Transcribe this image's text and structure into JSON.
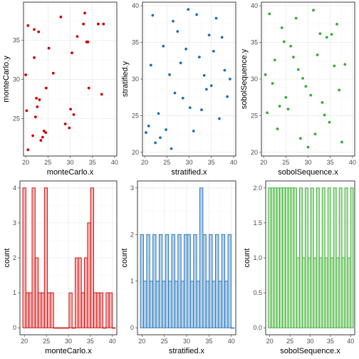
{
  "chart_data": [
    {
      "type": "scatter",
      "xlabel": "monteCarlo.x",
      "ylabel": "monteCarlo.y",
      "xlim": [
        19.5,
        40.5
      ],
      "ylim": [
        20.2,
        39.9
      ],
      "xticks": [
        20,
        25,
        30,
        35,
        40
      ],
      "yticks": [
        25,
        30,
        35
      ],
      "color": "#cc0000",
      "grid": "on",
      "points": [
        [
          20.5,
          21.0
        ],
        [
          20.2,
          26.0
        ],
        [
          20.0,
          30.6
        ],
        [
          20.5,
          36.9
        ],
        [
          21.6,
          22.8
        ],
        [
          21.9,
          32.8
        ],
        [
          21.9,
          36.4
        ],
        [
          22.2,
          25.2
        ],
        [
          22.4,
          27.6
        ],
        [
          22.6,
          26.5
        ],
        [
          22.9,
          36.1
        ],
        [
          23.1,
          27.4
        ],
        [
          23.4,
          22.2
        ],
        [
          23.8,
          22.6
        ],
        [
          24.1,
          23.4
        ],
        [
          24.5,
          23.2
        ],
        [
          24.6,
          28.9
        ],
        [
          25.2,
          34.0
        ],
        [
          26.2,
          30.8
        ],
        [
          27.9,
          38.0
        ],
        [
          28.9,
          24.3
        ],
        [
          29.8,
          23.8
        ],
        [
          30.1,
          26.2
        ],
        [
          30.4,
          33.4
        ],
        [
          30.8,
          25.5
        ],
        [
          31.6,
          35.5
        ],
        [
          33.0,
          37.1
        ],
        [
          33.3,
          38.5
        ],
        [
          33.7,
          34.8
        ],
        [
          34.0,
          34.8
        ],
        [
          34.2,
          28.9
        ],
        [
          36.3,
          37.1
        ],
        [
          37.1,
          28.1
        ],
        [
          37.5,
          37.1
        ]
      ]
    },
    {
      "type": "scatter",
      "xlabel": "stratified.x",
      "ylabel": "stratified.y",
      "xlim": [
        19.5,
        40.5
      ],
      "ylim": [
        19.5,
        40.5
      ],
      "xticks": [
        20,
        25,
        30,
        35,
        40
      ],
      "yticks": [
        20,
        25,
        30,
        35,
        40
      ],
      "color": "#1f6fb4",
      "grid": "on",
      "points": [
        [
          20.3,
          22.7
        ],
        [
          20.9,
          23.6
        ],
        [
          21.4,
          31.9
        ],
        [
          21.8,
          38.7
        ],
        [
          22.4,
          21.3
        ],
        [
          23.1,
          25.3
        ],
        [
          23.5,
          22.0
        ],
        [
          24.2,
          34.5
        ],
        [
          24.8,
          23.1
        ],
        [
          25.6,
          30.6
        ],
        [
          26.0,
          20.5
        ],
        [
          26.4,
          37.9
        ],
        [
          26.8,
          28.1
        ],
        [
          27.4,
          36.5
        ],
        [
          28.1,
          32.2
        ],
        [
          28.6,
          27.4
        ],
        [
          29.3,
          34.1
        ],
        [
          29.8,
          39.5
        ],
        [
          30.2,
          26.1
        ],
        [
          31.0,
          22.9
        ],
        [
          31.7,
          38.8
        ],
        [
          32.3,
          33.0
        ],
        [
          32.8,
          25.8
        ],
        [
          33.4,
          30.5
        ],
        [
          33.9,
          28.6
        ],
        [
          34.5,
          36.0
        ],
        [
          35.0,
          29.1
        ],
        [
          35.5,
          33.8
        ],
        [
          36.1,
          38.3
        ],
        [
          36.8,
          24.6
        ],
        [
          37.4,
          35.7
        ],
        [
          38.0,
          31.2
        ],
        [
          38.6,
          27.6
        ],
        [
          39.2,
          30.0
        ]
      ]
    },
    {
      "type": "scatter",
      "xlabel": "sobolSequence.x",
      "ylabel": "sobolSequence.y",
      "xlim": [
        19.5,
        40.5
      ],
      "ylim": [
        19.5,
        40.5
      ],
      "xticks": [
        20,
        25,
        30,
        35,
        40
      ],
      "yticks": [
        20,
        25,
        30,
        35,
        40
      ],
      "color": "#3aaa35",
      "grid": "on",
      "points": [
        [
          20.4,
          30.6
        ],
        [
          20.8,
          25.4
        ],
        [
          21.3,
          38.9
        ],
        [
          22.0,
          29.4
        ],
        [
          22.5,
          32.6
        ],
        [
          23.1,
          23.2
        ],
        [
          23.6,
          26.3
        ],
        [
          24.1,
          37.0
        ],
        [
          24.6,
          35.1
        ],
        [
          25.0,
          27.5
        ],
        [
          25.5,
          25.9
        ],
        [
          26.1,
          34.5
        ],
        [
          26.7,
          33.0
        ],
        [
          27.3,
          38.3
        ],
        [
          27.8,
          31.3
        ],
        [
          28.3,
          21.9
        ],
        [
          28.8,
          30.1
        ],
        [
          29.5,
          29.0
        ],
        [
          30.0,
          20.7
        ],
        [
          30.6,
          27.8
        ],
        [
          31.2,
          39.4
        ],
        [
          31.6,
          22.5
        ],
        [
          32.1,
          33.3
        ],
        [
          32.7,
          36.2
        ],
        [
          33.2,
          26.8
        ],
        [
          33.7,
          25.1
        ],
        [
          34.2,
          35.7
        ],
        [
          34.8,
          24.1
        ],
        [
          35.3,
          36.1
        ],
        [
          35.9,
          31.8
        ],
        [
          36.5,
          37.5
        ],
        [
          37.0,
          28.5
        ],
        [
          37.6,
          21.4
        ],
        [
          38.3,
          32.0
        ]
      ]
    },
    {
      "type": "bar",
      "xlabel": "monteCarlo.x",
      "ylabel": "count",
      "xlim": [
        19.0,
        41.0
      ],
      "ylim": [
        -0.2,
        4.2
      ],
      "xticks": [
        20,
        25,
        30,
        35,
        40
      ],
      "yticks": [
        0,
        1,
        2,
        3,
        4
      ],
      "fill": "#f8b4b4",
      "stroke": "#cc0000",
      "grid": "on",
      "binwidth": 0.7,
      "bin_centers": [
        20.0,
        20.7,
        21.4,
        22.1,
        22.8,
        23.5,
        24.2,
        24.9,
        25.6,
        26.3,
        27.0,
        27.7,
        28.4,
        29.1,
        29.8,
        30.5,
        31.2,
        31.9,
        32.6,
        33.3,
        34.0,
        34.7,
        35.4,
        36.1,
        36.8,
        37.5,
        38.2,
        38.9,
        39.6,
        40.3
      ],
      "values": [
        4,
        1,
        1,
        4,
        2,
        1,
        1,
        4,
        1,
        1,
        0,
        0,
        0,
        0,
        0,
        1,
        0,
        2,
        2,
        1,
        2,
        3,
        4,
        1,
        1,
        1,
        0,
        1,
        1,
        0
      ]
    },
    {
      "type": "bar",
      "xlabel": "stratified.x",
      "ylabel": "count",
      "xlim": [
        19.0,
        41.0
      ],
      "ylim": [
        -0.15,
        3.15
      ],
      "xticks": [
        20,
        25,
        30,
        35,
        40
      ],
      "yticks": [
        0,
        1,
        2,
        3
      ],
      "fill": "#b3d1ea",
      "stroke": "#1f6fb4",
      "grid": "on",
      "binwidth": 0.7,
      "bin_centers": [
        20.0,
        20.7,
        21.4,
        22.1,
        22.8,
        23.5,
        24.2,
        24.9,
        25.6,
        26.3,
        27.0,
        27.7,
        28.4,
        29.1,
        29.8,
        30.5,
        31.2,
        31.9,
        32.6,
        33.3,
        34.0,
        34.7,
        35.4,
        36.1,
        36.8,
        37.5,
        38.2,
        38.9,
        39.6,
        40.3
      ],
      "values": [
        2,
        1,
        2,
        1,
        2,
        1,
        2,
        1,
        2,
        1,
        2,
        1,
        2,
        1,
        2,
        2,
        1,
        2,
        1,
        3,
        2,
        1,
        2,
        1,
        2,
        1,
        2,
        1,
        2,
        0
      ]
    },
    {
      "type": "bar",
      "xlabel": "sobolSequence.x",
      "ylabel": "count",
      "xlim": [
        19.0,
        41.0
      ],
      "ylim": [
        -0.1,
        2.1
      ],
      "xticks": [
        20,
        25,
        30,
        35,
        40
      ],
      "yticks": [
        0.0,
        0.5,
        1.0,
        1.5,
        2.0
      ],
      "ytick_labels": [
        "0.0",
        "0.5",
        "1.0",
        "1.5",
        "2.0"
      ],
      "fill": "#bfe8b8",
      "stroke": "#3aaa35",
      "grid": "on",
      "binwidth": 0.7,
      "bin_centers": [
        20.0,
        20.7,
        21.4,
        22.1,
        22.8,
        23.5,
        24.2,
        24.9,
        25.6,
        26.3,
        27.0,
        27.7,
        28.4,
        29.1,
        29.8,
        30.5,
        31.2,
        31.9,
        32.6,
        33.3,
        34.0,
        34.7,
        35.4,
        36.1,
        36.8,
        37.5,
        38.2,
        38.9,
        39.6,
        40.3
      ],
      "values": [
        2,
        2,
        2,
        2,
        2,
        2,
        2,
        2,
        2,
        2,
        1,
        2,
        1,
        2,
        1,
        2,
        1,
        2,
        1,
        2,
        1,
        2,
        1,
        2,
        1,
        2,
        1,
        2,
        1,
        2
      ]
    }
  ]
}
